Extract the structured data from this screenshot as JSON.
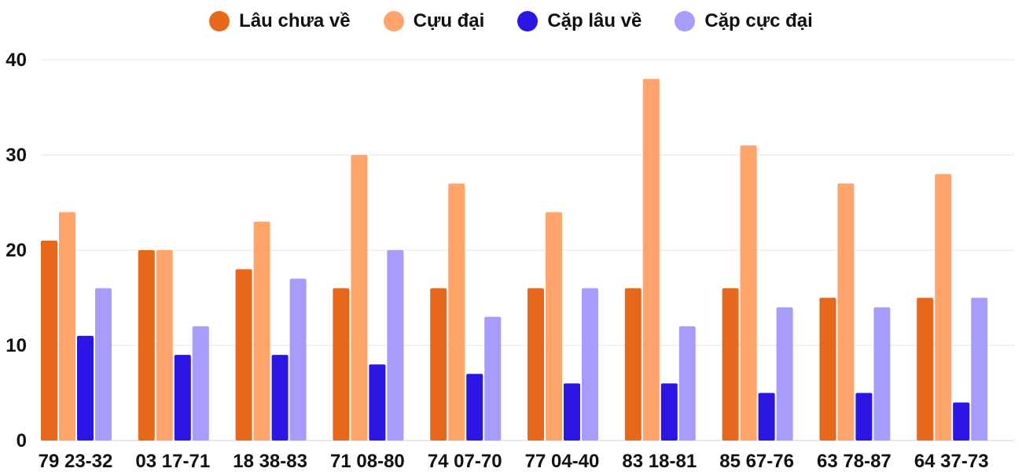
{
  "chart_data": {
    "type": "bar",
    "title": "",
    "xlabel": "",
    "ylabel": "",
    "ylim": [
      0,
      40
    ],
    "yticks": [
      0,
      10,
      20,
      30,
      40
    ],
    "grid": true,
    "legend_position": "top-center",
    "categories": [
      "79 23-32",
      "03 17-71",
      "18 38-83",
      "71 08-80",
      "74 07-70",
      "77 04-40",
      "83 18-81",
      "85 67-76",
      "63 78-87",
      "64 37-73"
    ],
    "series": [
      {
        "name": "Lâu chưa về",
        "color": "#e8681b",
        "values": [
          21,
          20,
          18,
          16,
          16,
          16,
          16,
          16,
          15,
          15
        ]
      },
      {
        "name": "Cựu đại",
        "color": "#ffa56b",
        "values": [
          24,
          20,
          23,
          30,
          27,
          24,
          38,
          31,
          27,
          28
        ]
      },
      {
        "name": "Cặp lâu về",
        "color": "#2b16e3",
        "values": [
          11,
          9,
          9,
          8,
          7,
          6,
          6,
          5,
          5,
          4
        ]
      },
      {
        "name": "Cặp cực đại",
        "color": "#a59cfb",
        "values": [
          16,
          12,
          17,
          20,
          13,
          16,
          12,
          14,
          14,
          15
        ]
      }
    ]
  }
}
